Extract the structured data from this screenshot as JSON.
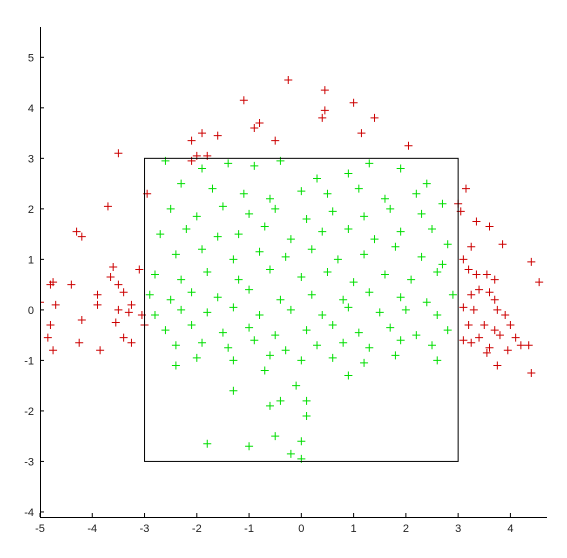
{
  "chart_data": {
    "type": "scatter",
    "title": "",
    "xlabel": "",
    "ylabel": "",
    "xlim": [
      -5,
      4.7
    ],
    "ylim": [
      -4.1,
      5.6
    ],
    "x_ticks": [
      -5,
      -4,
      -3,
      -2,
      -1,
      0,
      1,
      2,
      3,
      4
    ],
    "y_ticks": [
      -4,
      -3,
      -2,
      -1,
      0,
      1,
      2,
      3,
      4,
      5
    ],
    "x_tick_labels": [
      "-5",
      "-4",
      "-3",
      "-2",
      "-1",
      "0",
      "1",
      "2",
      "3",
      "4"
    ],
    "y_tick_labels": [
      "-4",
      "-3",
      "-2",
      "-1",
      "0",
      "1",
      "2",
      "3",
      "4",
      "5"
    ],
    "grid": false,
    "marker": "+",
    "box": {
      "x": [
        -3,
        3
      ],
      "y": [
        -3,
        3
      ],
      "color": "#000000"
    },
    "series": [
      {
        "color": "#00dd00",
        "points": [
          [
            -2.6,
            2.95
          ],
          [
            -1.9,
            2.8
          ],
          [
            -1.4,
            2.9
          ],
          [
            -0.9,
            2.85
          ],
          [
            -0.4,
            2.95
          ],
          [
            0.3,
            2.6
          ],
          [
            0.9,
            2.7
          ],
          [
            1.3,
            2.9
          ],
          [
            1.9,
            2.8
          ],
          [
            2.4,
            2.5
          ],
          [
            -2.3,
            2.5
          ],
          [
            -1.7,
            2.4
          ],
          [
            -1.1,
            2.3
          ],
          [
            -0.6,
            2.2
          ],
          [
            0.0,
            2.35
          ],
          [
            0.5,
            2.3
          ],
          [
            1.1,
            2.4
          ],
          [
            1.6,
            2.2
          ],
          [
            2.2,
            2.3
          ],
          [
            2.7,
            2.1
          ],
          [
            -2.5,
            2.0
          ],
          [
            -2.0,
            1.85
          ],
          [
            -1.5,
            2.05
          ],
          [
            -1.0,
            1.9
          ],
          [
            -0.5,
            2.0
          ],
          [
            0.1,
            1.8
          ],
          [
            0.6,
            1.95
          ],
          [
            1.2,
            1.85
          ],
          [
            1.7,
            2.0
          ],
          [
            2.3,
            1.9
          ],
          [
            -2.7,
            1.5
          ],
          [
            -2.2,
            1.6
          ],
          [
            -1.6,
            1.45
          ],
          [
            -1.2,
            1.5
          ],
          [
            -0.7,
            1.65
          ],
          [
            -0.2,
            1.4
          ],
          [
            0.4,
            1.55
          ],
          [
            0.9,
            1.6
          ],
          [
            1.4,
            1.4
          ],
          [
            1.9,
            1.55
          ],
          [
            2.5,
            1.6
          ],
          [
            2.8,
            1.3
          ],
          [
            -2.4,
            1.1
          ],
          [
            -1.9,
            1.2
          ],
          [
            -1.3,
            1.0
          ],
          [
            -0.8,
            1.15
          ],
          [
            -0.3,
            1.05
          ],
          [
            0.2,
            1.2
          ],
          [
            0.7,
            1.0
          ],
          [
            1.2,
            1.1
          ],
          [
            1.8,
            1.25
          ],
          [
            2.3,
            1.05
          ],
          [
            2.7,
            0.9
          ],
          [
            -2.8,
            0.7
          ],
          [
            -2.3,
            0.6
          ],
          [
            -1.8,
            0.75
          ],
          [
            -1.2,
            0.6
          ],
          [
            -0.6,
            0.8
          ],
          [
            0.0,
            0.65
          ],
          [
            0.5,
            0.75
          ],
          [
            1.0,
            0.55
          ],
          [
            1.6,
            0.7
          ],
          [
            2.1,
            0.6
          ],
          [
            2.6,
            0.75
          ],
          [
            -2.9,
            0.3
          ],
          [
            -2.5,
            0.2
          ],
          [
            -2.1,
            0.35
          ],
          [
            -1.6,
            0.25
          ],
          [
            -1.0,
            0.4
          ],
          [
            -0.4,
            0.2
          ],
          [
            0.2,
            0.3
          ],
          [
            0.8,
            0.2
          ],
          [
            1.3,
            0.35
          ],
          [
            1.9,
            0.25
          ],
          [
            2.4,
            0.15
          ],
          [
            2.9,
            0.3
          ],
          [
            -2.8,
            -0.1
          ],
          [
            -2.3,
            0.0
          ],
          [
            -1.8,
            -0.05
          ],
          [
            -1.3,
            0.05
          ],
          [
            -0.8,
            -0.1
          ],
          [
            -0.2,
            0.0
          ],
          [
            0.4,
            -0.1
          ],
          [
            0.9,
            0.05
          ],
          [
            1.5,
            -0.05
          ],
          [
            2.0,
            0.0
          ],
          [
            2.6,
            -0.1
          ],
          [
            -2.6,
            -0.4
          ],
          [
            -2.1,
            -0.3
          ],
          [
            -1.5,
            -0.45
          ],
          [
            -1.0,
            -0.35
          ],
          [
            -0.5,
            -0.5
          ],
          [
            0.1,
            -0.4
          ],
          [
            0.6,
            -0.3
          ],
          [
            1.1,
            -0.45
          ],
          [
            1.7,
            -0.35
          ],
          [
            2.2,
            -0.5
          ],
          [
            2.8,
            -0.4
          ],
          [
            -2.4,
            -0.7
          ],
          [
            -1.9,
            -0.65
          ],
          [
            -1.4,
            -0.75
          ],
          [
            -0.9,
            -0.6
          ],
          [
            -0.3,
            -0.8
          ],
          [
            0.3,
            -0.7
          ],
          [
            0.8,
            -0.65
          ],
          [
            1.3,
            -0.75
          ],
          [
            1.9,
            -0.6
          ],
          [
            2.5,
            -0.7
          ],
          [
            -2.0,
            -0.95
          ],
          [
            -1.3,
            -1.0
          ],
          [
            -0.6,
            -0.9
          ],
          [
            0.0,
            -1.0
          ],
          [
            0.6,
            -0.95
          ],
          [
            1.2,
            -1.05
          ],
          [
            1.8,
            -0.9
          ],
          [
            2.6,
            -1.0
          ],
          [
            -2.4,
            -1.1
          ],
          [
            -0.7,
            -1.2
          ],
          [
            0.9,
            -1.3
          ],
          [
            -1.3,
            -1.6
          ],
          [
            -0.1,
            -1.5
          ],
          [
            -0.4,
            -1.8
          ],
          [
            0.1,
            -1.8
          ],
          [
            -0.6,
            -1.9
          ],
          [
            0.1,
            -2.1
          ],
          [
            -0.5,
            -2.5
          ],
          [
            0.0,
            -2.6
          ],
          [
            -1.8,
            -2.65
          ],
          [
            -1.0,
            -2.7
          ],
          [
            -0.2,
            -2.85
          ],
          [
            0.0,
            -2.95
          ]
        ]
      },
      {
        "color": "#cc0000",
        "points": [
          [
            -0.25,
            4.55
          ],
          [
            0.45,
            4.35
          ],
          [
            1.0,
            4.1
          ],
          [
            -1.1,
            4.15
          ],
          [
            0.45,
            3.95
          ],
          [
            0.4,
            3.8
          ],
          [
            1.4,
            3.8
          ],
          [
            -0.9,
            3.6
          ],
          [
            -0.8,
            3.7
          ],
          [
            1.15,
            3.5
          ],
          [
            -1.9,
            3.5
          ],
          [
            -1.6,
            3.45
          ],
          [
            -2.1,
            3.35
          ],
          [
            -0.5,
            3.35
          ],
          [
            2.05,
            3.25
          ],
          [
            -2.0,
            3.05
          ],
          [
            -2.1,
            2.95
          ],
          [
            -1.8,
            3.05
          ],
          [
            -3.5,
            3.1
          ],
          [
            -2.95,
            2.3
          ],
          [
            -3.7,
            2.05
          ],
          [
            3.15,
            2.4
          ],
          [
            3.0,
            2.1
          ],
          [
            3.05,
            1.95
          ],
          [
            3.35,
            1.75
          ],
          [
            3.6,
            1.65
          ],
          [
            3.25,
            1.25
          ],
          [
            3.85,
            1.3
          ],
          [
            -4.3,
            1.55
          ],
          [
            -4.2,
            1.45
          ],
          [
            3.1,
            1.0
          ],
          [
            3.2,
            0.8
          ],
          [
            -3.6,
            0.85
          ],
          [
            -3.1,
            0.8
          ],
          [
            -3.5,
            0.5
          ],
          [
            -3.65,
            0.65
          ],
          [
            3.35,
            0.7
          ],
          [
            3.55,
            0.7
          ],
          [
            3.7,
            0.6
          ],
          [
            4.4,
            0.95
          ],
          [
            4.55,
            0.55
          ],
          [
            -4.8,
            0.5
          ],
          [
            -4.75,
            0.55
          ],
          [
            -4.4,
            0.5
          ],
          [
            -3.9,
            0.3
          ],
          [
            -3.4,
            0.35
          ],
          [
            -3.25,
            0.1
          ],
          [
            3.25,
            0.3
          ],
          [
            3.4,
            0.4
          ],
          [
            3.6,
            0.35
          ],
          [
            3.7,
            0.2
          ],
          [
            -4.7,
            0.1
          ],
          [
            -3.9,
            0.1
          ],
          [
            -3.5,
            0.0
          ],
          [
            -3.3,
            -0.05
          ],
          [
            -3.05,
            -0.1
          ],
          [
            3.1,
            0.05
          ],
          [
            3.3,
            0.0
          ],
          [
            3.75,
            0.0
          ],
          [
            3.9,
            -0.1
          ],
          [
            -4.8,
            -0.3
          ],
          [
            -4.2,
            -0.2
          ],
          [
            -3.55,
            -0.25
          ],
          [
            -3.0,
            -0.3
          ],
          [
            3.2,
            -0.3
          ],
          [
            3.5,
            -0.3
          ],
          [
            3.7,
            -0.4
          ],
          [
            4.0,
            -0.3
          ],
          [
            -4.85,
            -0.55
          ],
          [
            -3.4,
            -0.55
          ],
          [
            -3.25,
            -0.65
          ],
          [
            3.1,
            -0.6
          ],
          [
            3.4,
            -0.55
          ],
          [
            3.8,
            -0.5
          ],
          [
            4.1,
            -0.55
          ],
          [
            -4.25,
            -0.65
          ],
          [
            -4.75,
            -0.8
          ],
          [
            -3.85,
            -0.8
          ],
          [
            3.25,
            -0.65
          ],
          [
            3.6,
            -0.75
          ],
          [
            4.2,
            -0.7
          ],
          [
            4.35,
            -0.7
          ],
          [
            3.55,
            -0.85
          ],
          [
            3.95,
            -0.8
          ],
          [
            3.75,
            -1.1
          ],
          [
            4.4,
            -1.25
          ],
          [
            -5.0,
            0.15
          ]
        ]
      }
    ]
  }
}
